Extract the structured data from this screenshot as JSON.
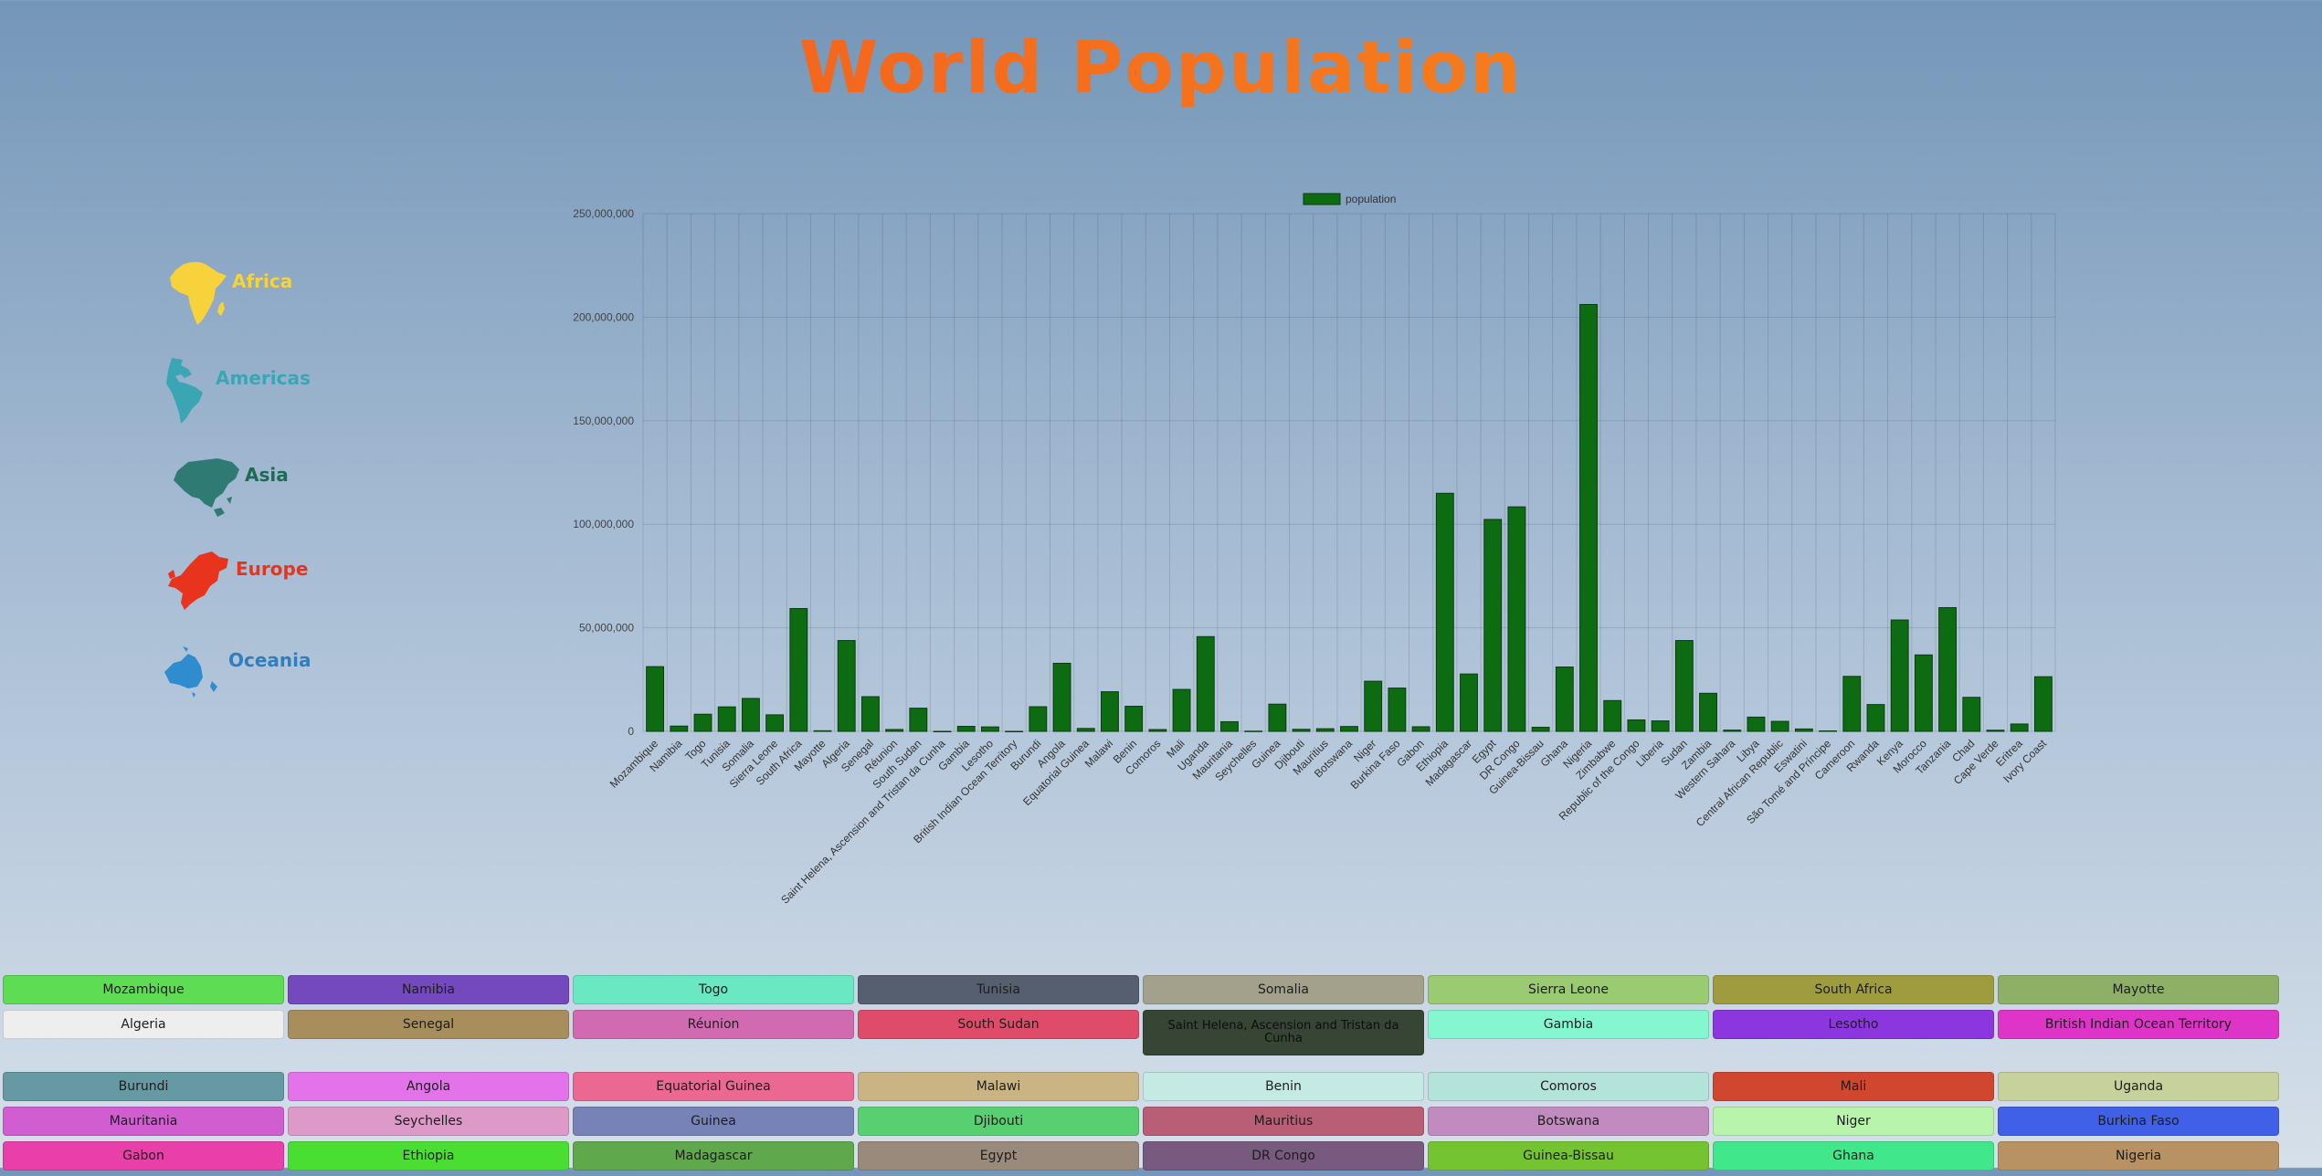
{
  "title": "World Population",
  "continents": [
    {
      "label": "Africa",
      "color": "#f7d23a",
      "icon": "africa-icon"
    },
    {
      "label": "Americas",
      "color": "#3aa6b4",
      "icon": "americas-icon"
    },
    {
      "label": "Asia",
      "color": "#1e6b55",
      "icon": "asia-icon"
    },
    {
      "label": "Europe",
      "color": "#e8341c",
      "icon": "europe-icon"
    },
    {
      "label": "Oceania",
      "color": "#2f8dcf",
      "icon": "oceania-icon"
    }
  ],
  "chart_data": {
    "type": "bar",
    "legend": {
      "label": "population",
      "position": "top-center"
    },
    "bar_color": "#0d6b12",
    "grid": true,
    "ylim": [
      0,
      250000000
    ],
    "yticks": [
      "0",
      "50,000,000",
      "100,000,000",
      "150,000,000",
      "200,000,000",
      "250,000,000"
    ],
    "categories": [
      "Mozambique",
      "Namibia",
      "Togo",
      "Tunisia",
      "Somalia",
      "Sierra Leone",
      "South Africa",
      "Mayotte",
      "Algeria",
      "Senegal",
      "Réunion",
      "South Sudan",
      "Saint Helena, Ascension and Tristan da Cunha",
      "Gambia",
      "Lesotho",
      "British Indian Ocean Territory",
      "Burundi",
      "Angola",
      "Equatorial Guinea",
      "Malawi",
      "Benin",
      "Comoros",
      "Mali",
      "Uganda",
      "Mauritania",
      "Seychelles",
      "Guinea",
      "Djibouti",
      "Mauritius",
      "Botswana",
      "Niger",
      "Burkina Faso",
      "Gabon",
      "Ethiopia",
      "Madagascar",
      "Egypt",
      "DR Congo",
      "Guinea-Bissau",
      "Ghana",
      "Nigeria",
      "Zimbabwe",
      "Republic of the Congo",
      "Liberia",
      "Sudan",
      "Zambia",
      "Western Sahara",
      "Libya",
      "Central African Republic",
      "Eswatini",
      "São Tomé and Príncipe",
      "Cameroon",
      "Rwanda",
      "Kenya",
      "Morocco",
      "Tanzania",
      "Chad",
      "Cape Verde",
      "Eritrea",
      "Ivory Coast"
    ],
    "values": [
      31255435,
      2540916,
      8278737,
      11818618,
      15893219,
      7976985,
      59308690,
      279515,
      43851043,
      16743930,
      895312,
      11193729,
      5633,
      2416664,
      2142252,
      3000,
      11890781,
      32866268,
      1402985,
      19129955,
      12123198,
      869595,
      20250834,
      45741000,
      4649660,
      98462,
      13132792,
      988002,
      1265740,
      2351625,
      24206636,
      20903278,
      2225728,
      114963583,
      27691019,
      102334403,
      108407721,
      1967998,
      31072945,
      206139587,
      14862927,
      5518092,
      5057677,
      43849269,
      18383956,
      597330,
      6871287,
      4829764,
      1160164,
      219161,
      26545864,
      12952209,
      53771300,
      36910558,
      59734213,
      16425859,
      555988,
      3546427,
      26378275
    ]
  },
  "buttons": [
    {
      "label": "Mozambique",
      "color": "#5ddc54",
      "text": "#1d1d1d"
    },
    {
      "label": "Namibia",
      "color": "#7349bd",
      "text": "#1d1d1d"
    },
    {
      "label": "Togo",
      "color": "#69e8c1",
      "text": "#1d1d1d"
    },
    {
      "label": "Tunisia",
      "color": "#555f6f",
      "text": "#1d1d1d"
    },
    {
      "label": "Somalia",
      "color": "#a3a18c",
      "text": "#1d1d1d"
    },
    {
      "label": "Sierra Leone",
      "color": "#9acb73",
      "text": "#1d1d1d"
    },
    {
      "label": "South Africa",
      "color": "#9e9c3f",
      "text": "#1d1d1d"
    },
    {
      "label": "Mayotte",
      "color": "#8db066",
      "text": "#1d1d1d"
    },
    {
      "label": "Algeria",
      "color": "#eeeeee",
      "text": "#1d1d1d"
    },
    {
      "label": "Senegal",
      "color": "#a98e5d",
      "text": "#1d1d1d"
    },
    {
      "label": "Réunion",
      "color": "#d16ab1",
      "text": "#1d1d1d"
    },
    {
      "label": "South Sudan",
      "color": "#df4c6a",
      "text": "#1d1d1d"
    },
    {
      "label": "Saint Helena, Ascension and Tristan da Cunha",
      "color": "#374534",
      "text": "#0d0d0d"
    },
    {
      "label": "Gambia",
      "color": "#85f7d0",
      "text": "#1d1d1d"
    },
    {
      "label": "Lesotho",
      "color": "#8b36df",
      "text": "#1d1d1d"
    },
    {
      "label": "British Indian Ocean Territory",
      "color": "#df34c8",
      "text": "#1d1d1d"
    },
    {
      "label": "Burundi",
      "color": "#6699a2",
      "text": "#1d1d1d"
    },
    {
      "label": "Angola",
      "color": "#e472ea",
      "text": "#1d1d1d"
    },
    {
      "label": "Equatorial Guinea",
      "color": "#ea6891",
      "text": "#1d1d1d"
    },
    {
      "label": "Malawi",
      "color": "#cbb483",
      "text": "#1d1d1d"
    },
    {
      "label": "Benin",
      "color": "#c5eae4",
      "text": "#1d1d1d"
    },
    {
      "label": "Comoros",
      "color": "#b4e3da",
      "text": "#1d1d1d"
    },
    {
      "label": "Mali",
      "color": "#d1462e",
      "text": "#1d1d1d"
    },
    {
      "label": "Uganda",
      "color": "#c6d19c",
      "text": "#1d1d1d"
    },
    {
      "label": "Mauritania",
      "color": "#d15ed1",
      "text": "#1d1d1d"
    },
    {
      "label": "Seychelles",
      "color": "#dd9ac8",
      "text": "#1d1d1d"
    },
    {
      "label": "Guinea",
      "color": "#7783b7",
      "text": "#1d1d1d"
    },
    {
      "label": "Djibouti",
      "color": "#58d072",
      "text": "#1d1d1d"
    },
    {
      "label": "Mauritius",
      "color": "#b85f76",
      "text": "#1d1d1d"
    },
    {
      "label": "Botswana",
      "color": "#c28bbf",
      "text": "#1d1d1d"
    },
    {
      "label": "Niger",
      "color": "#b8f4ac",
      "text": "#1d1d1d"
    },
    {
      "label": "Burkina Faso",
      "color": "#4060e8",
      "text": "#1d1d1d"
    },
    {
      "label": "Gabon",
      "color": "#e93fa8",
      "text": "#1d1d1d"
    },
    {
      "label": "Ethiopia",
      "color": "#4ade32",
      "text": "#1d1d1d"
    },
    {
      "label": "Madagascar",
      "color": "#5fa84c",
      "text": "#1d1d1d"
    },
    {
      "label": "Egypt",
      "color": "#9a8a7c",
      "text": "#1d1d1d"
    },
    {
      "label": "DR Congo",
      "color": "#775a7e",
      "text": "#1d1d1d"
    },
    {
      "label": "Guinea-Bissau",
      "color": "#74c330",
      "text": "#1d1d1d"
    },
    {
      "label": "Ghana",
      "color": "#41e88b",
      "text": "#1d1d1d"
    },
    {
      "label": "Nigeria",
      "color": "#b89262",
      "text": "#1d1d1d"
    }
  ]
}
